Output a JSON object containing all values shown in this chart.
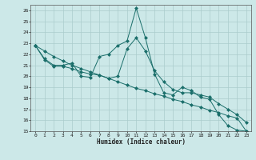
{
  "xlabel": "Humidex (Indice chaleur)",
  "bg_color": "#cce8e8",
  "grid_color": "#aacccc",
  "line_color": "#1a6e6a",
  "xlim": [
    -0.5,
    23.5
  ],
  "ylim": [
    15,
    26.5
  ],
  "yticks": [
    15,
    16,
    17,
    18,
    19,
    20,
    21,
    22,
    23,
    24,
    25,
    26
  ],
  "xticks": [
    0,
    1,
    2,
    3,
    4,
    5,
    6,
    7,
    8,
    9,
    10,
    11,
    12,
    13,
    14,
    15,
    16,
    17,
    18,
    19,
    20,
    21,
    22,
    23
  ],
  "line1_x": [
    0,
    1,
    2,
    3,
    4,
    5,
    6,
    7,
    8,
    9,
    10,
    11,
    12,
    13,
    14,
    15,
    16,
    17,
    18,
    19,
    20,
    21,
    22,
    23
  ],
  "line1_y": [
    22.8,
    21.6,
    21.0,
    21.0,
    21.2,
    20.0,
    19.9,
    21.8,
    22.0,
    22.8,
    23.2,
    26.2,
    23.5,
    20.2,
    18.5,
    18.3,
    19.0,
    18.7,
    18.1,
    17.9,
    16.5,
    15.5,
    15.1,
    15.0
  ],
  "line2_x": [
    0,
    1,
    2,
    3,
    4,
    5,
    6,
    7,
    8,
    9,
    10,
    11,
    12,
    13,
    14,
    15,
    16,
    17,
    18,
    19,
    20,
    21,
    22,
    23
  ],
  "line2_y": [
    22.8,
    21.5,
    20.9,
    20.9,
    20.7,
    20.4,
    20.2,
    20.1,
    19.8,
    20.0,
    22.5,
    23.5,
    22.3,
    20.5,
    19.5,
    18.8,
    18.5,
    18.5,
    18.3,
    18.1,
    17.5,
    17.0,
    16.5,
    15.8
  ],
  "line3_x": [
    0,
    1,
    2,
    3,
    4,
    5,
    6,
    7,
    8,
    9,
    10,
    11,
    12,
    13,
    14,
    15,
    16,
    17,
    18,
    19,
    20,
    21,
    22,
    23
  ],
  "line3_y": [
    22.8,
    22.3,
    21.8,
    21.4,
    21.0,
    20.7,
    20.4,
    20.1,
    19.8,
    19.5,
    19.2,
    18.9,
    18.7,
    18.4,
    18.2,
    17.9,
    17.7,
    17.4,
    17.2,
    16.9,
    16.7,
    16.4,
    16.2,
    15.0
  ],
  "markersize": 2.5
}
